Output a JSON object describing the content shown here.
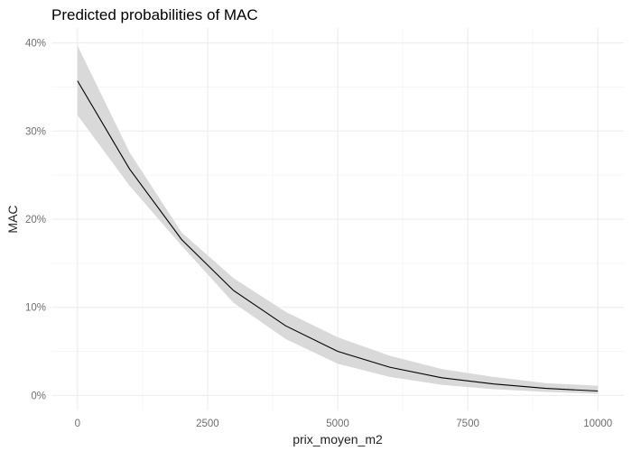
{
  "chart_data": {
    "type": "line",
    "title": "Predicted probabilities of MAC",
    "xlabel": "prix_moyen_m2",
    "ylabel": "MAC",
    "x_ticks": [
      0,
      2500,
      5000,
      7500,
      10000
    ],
    "y_ticks": [
      0,
      0.1,
      0.2,
      0.3,
      0.4
    ],
    "x_tick_labels": [
      "0",
      "2500",
      "5000",
      "7500",
      "10000"
    ],
    "y_tick_labels": [
      "0%",
      "10%",
      "20%",
      "30%",
      "40%"
    ],
    "xlim": [
      -500,
      10500
    ],
    "ylim": [
      -0.017,
      0.417
    ],
    "grid": true,
    "series": [
      {
        "color": "#000000",
        "band_color": "#d9d9d9",
        "x": [
          0,
          1000,
          2000,
          3000,
          4000,
          5000,
          6000,
          7000,
          8000,
          9000,
          10000
        ],
        "y": [
          0.357,
          0.257,
          0.177,
          0.119,
          0.079,
          0.05,
          0.032,
          0.02,
          0.013,
          0.008,
          0.005
        ],
        "lower": [
          0.318,
          0.238,
          0.17,
          0.105,
          0.064,
          0.036,
          0.021,
          0.012,
          0.007,
          0.004,
          0.002
        ],
        "upper": [
          0.397,
          0.276,
          0.185,
          0.133,
          0.095,
          0.066,
          0.045,
          0.03,
          0.021,
          0.014,
          0.011
        ]
      }
    ]
  }
}
